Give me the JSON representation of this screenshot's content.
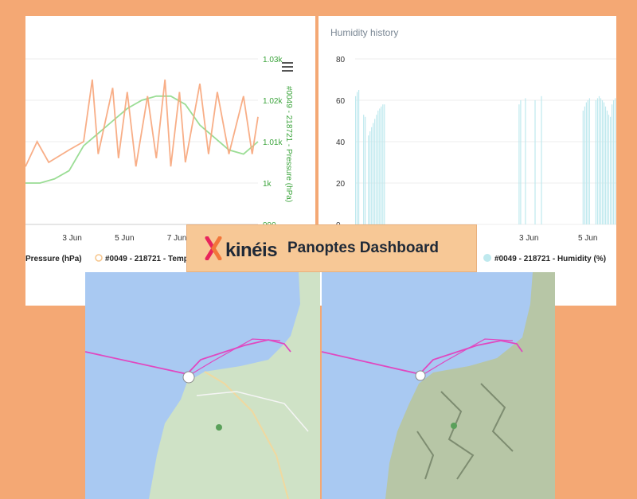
{
  "banner": {
    "brand": "kinéis",
    "title": "Panoptes Dashboard",
    "logo_icon": "kineis-logo-icon"
  },
  "pressure_panel": {
    "menu_icon": "hamburger-menu-icon",
    "right_axis_title": "#0049 - 218721 - Pressure (hPa)",
    "right_ticks": [
      "1.03k",
      "1.02k",
      "1.01k",
      "1k",
      "990"
    ],
    "x_ticks": [
      "3 Jun",
      "5 Jun",
      "7 Jun"
    ],
    "legend": [
      "Pressure (hPa)",
      "#0049 - 218721 - Temp"
    ]
  },
  "humidity_panel": {
    "title": "Humidity history",
    "y_ticks": [
      "80",
      "60",
      "40",
      "20",
      "0"
    ],
    "x_ticks": [
      "3 Jun",
      "5 Jun"
    ],
    "legend": [
      "#0049 - 218721 - Humidity (%)"
    ]
  },
  "chart_data": [
    {
      "type": "line",
      "title": "",
      "ylabel": "#0049 - 218721 - Pressure (hPa)",
      "ylim": [
        990,
        1030
      ],
      "x_ticks": [
        "3 Jun",
        "5 Jun",
        "7 Jun"
      ],
      "legend_placement": "bottom",
      "series": [
        {
          "name": "#0049 - 218721 - Pressure (hPa)",
          "color": "#90d98a",
          "points": [
            [
              0,
              1000
            ],
            [
              0.5,
              1000
            ],
            [
              1,
              1001
            ],
            [
              1.5,
              1003
            ],
            [
              2,
              1009
            ],
            [
              2.5,
              1012
            ],
            [
              3,
              1015
            ],
            [
              3.5,
              1018
            ],
            [
              4,
              1020
            ],
            [
              4.5,
              1021
            ],
            [
              5,
              1021
            ],
            [
              5.5,
              1019
            ],
            [
              6,
              1014
            ],
            [
              6.5,
              1011
            ],
            [
              7,
              1008
            ],
            [
              7.5,
              1007
            ],
            [
              8,
              1010
            ]
          ]
        },
        {
          "name": "#0049 - 218721 - Temp",
          "color": "#f7a57a",
          "points": [
            [
              0,
              1004
            ],
            [
              0.4,
              1010
            ],
            [
              0.8,
              1005
            ],
            [
              1.5,
              1008
            ],
            [
              2,
              1010
            ],
            [
              2.3,
              1025
            ],
            [
              2.5,
              1007
            ],
            [
              3,
              1023
            ],
            [
              3.2,
              1006
            ],
            [
              3.5,
              1022
            ],
            [
              3.8,
              1004
            ],
            [
              4.2,
              1021
            ],
            [
              4.5,
              1006
            ],
            [
              4.8,
              1025
            ],
            [
              5,
              1004
            ],
            [
              5.3,
              1022
            ],
            [
              5.5,
              1005
            ],
            [
              6,
              1024
            ],
            [
              6.3,
              1007
            ],
            [
              6.6,
              1022
            ],
            [
              7,
              1007
            ],
            [
              7.5,
              1021
            ],
            [
              7.8,
              1007
            ],
            [
              8,
              1016
            ]
          ]
        }
      ]
    },
    {
      "type": "bar",
      "title": "Humidity history",
      "ylim": [
        0,
        80
      ],
      "x_ticks": [
        "3 Jun",
        "5 Jun"
      ],
      "legend_placement": "bottom",
      "series": [
        {
          "name": "#0049 - 218721 - Humidity (%)",
          "color": "#bfe9ee",
          "values": [
            62,
            64,
            65,
            0,
            0,
            53,
            52,
            0,
            43,
            45,
            47,
            49,
            51,
            53,
            55,
            56,
            57,
            58,
            58,
            0,
            0,
            0,
            0,
            0,
            0,
            0,
            0,
            0,
            0,
            0,
            0,
            0,
            0,
            0,
            0,
            0,
            0,
            0,
            0,
            0,
            0,
            0,
            0,
            0,
            0,
            0,
            0,
            0,
            0,
            0,
            0,
            0,
            0,
            0,
            0,
            0,
            0,
            0,
            0,
            0,
            0,
            0,
            0,
            0,
            0,
            0,
            0,
            0,
            0,
            0,
            0,
            0,
            0,
            0,
            0,
            0,
            0,
            0,
            0,
            0,
            0,
            0,
            0,
            0,
            0,
            0,
            0,
            0,
            0,
            0,
            0,
            0,
            0,
            0,
            0,
            0,
            0,
            0,
            0,
            0,
            0,
            0,
            58,
            60,
            0,
            0,
            61,
            0,
            0,
            0,
            0,
            0,
            60,
            0,
            0,
            0,
            62,
            0,
            0,
            0,
            0,
            0,
            0,
            0,
            0,
            0,
            0,
            0,
            0,
            0,
            0,
            0,
            0,
            0,
            0,
            0,
            0,
            0,
            0,
            0,
            0,
            0,
            55,
            57,
            59,
            60,
            61,
            0,
            0,
            0,
            60,
            61,
            62,
            61,
            60,
            59,
            57,
            55,
            53,
            52,
            58,
            60,
            61
          ]
        }
      ]
    }
  ],
  "maps": {
    "left": {
      "name": "road-map",
      "route_color": "#e048c0"
    },
    "right": {
      "name": "terrain-map",
      "route_color": "#e048c0"
    }
  }
}
